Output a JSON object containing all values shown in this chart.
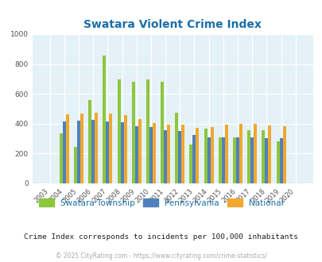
{
  "title": "Swatara Violent Crime Index",
  "subtitle": "Crime Index corresponds to incidents per 100,000 inhabitants",
  "footer": "© 2025 CityRating.com - https://www.cityrating.com/crime-statistics/",
  "years": [
    2003,
    2004,
    2005,
    2006,
    2007,
    2008,
    2009,
    2010,
    2011,
    2012,
    2013,
    2014,
    2015,
    2016,
    2017,
    2018,
    2019,
    2020
  ],
  "swatara": [
    0,
    335,
    245,
    560,
    855,
    695,
    680,
    695,
    680,
    475,
    260,
    365,
    310,
    310,
    355,
    355,
    280,
    0
  ],
  "pennsylvania": [
    0,
    415,
    420,
    425,
    415,
    410,
    385,
    375,
    355,
    350,
    325,
    310,
    310,
    310,
    310,
    305,
    305,
    0
  ],
  "national": [
    0,
    465,
    470,
    475,
    470,
    455,
    430,
    405,
    395,
    395,
    370,
    375,
    395,
    400,
    400,
    390,
    385,
    0
  ],
  "colors": {
    "swatara": "#8dc63f",
    "pennsylvania": "#4f81bd",
    "national": "#f0a830"
  },
  "ylim": [
    0,
    1000
  ],
  "yticks": [
    0,
    200,
    400,
    600,
    800,
    1000
  ],
  "background_color": "#e4f2f7",
  "title_color": "#1a6ea8",
  "legend_labels": [
    "Swatara Township",
    "Pennsylvania",
    "National"
  ],
  "bar_width": 0.22
}
